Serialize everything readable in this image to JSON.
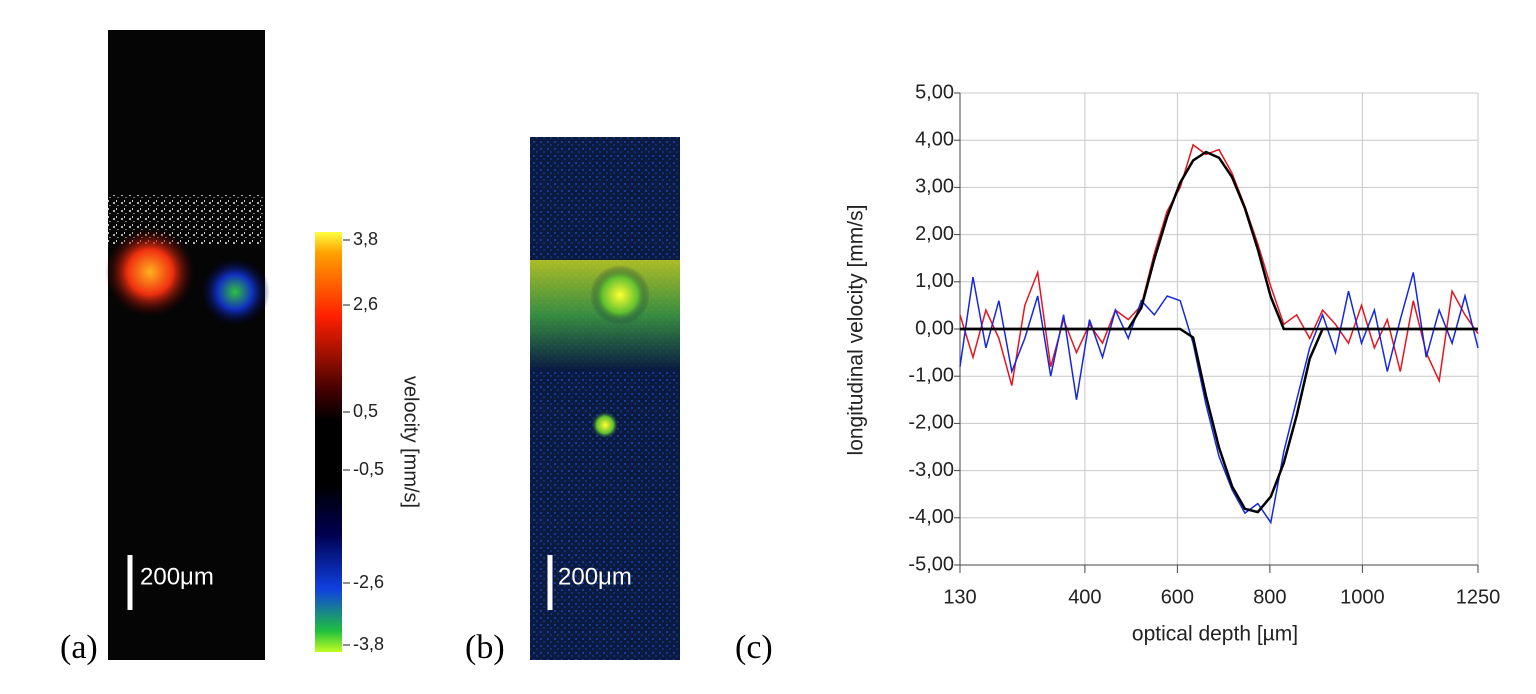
{
  "panel_a": {
    "label": "(a)",
    "scale_bar": "200μm"
  },
  "colorbar": {
    "title": "velocity [mm/s]",
    "labels": [
      "3,8",
      "2,6",
      "0,5",
      "-0,5",
      "-2,6",
      "-3,8"
    ]
  },
  "panel_b": {
    "label": "(b)",
    "scale_bar": "200μm"
  },
  "panel_c": {
    "label": "(c)"
  },
  "chart_data": {
    "type": "line",
    "xlabel": "optical depth [µm]",
    "ylabel": "longitudinal velocity [mm/s]",
    "x": [
      130,
      158,
      186,
      214,
      242,
      270,
      298,
      326,
      354,
      382,
      410,
      438,
      466,
      494,
      522,
      550,
      578,
      606,
      634,
      662,
      690,
      718,
      746,
      774,
      802,
      830,
      858,
      886,
      914,
      942,
      970,
      998,
      1026,
      1054,
      1082,
      1110,
      1138,
      1166,
      1194,
      1222,
      1250
    ],
    "series": [
      {
        "name": "red",
        "color": "#e8141c",
        "values": [
          0.3,
          -0.6,
          0.4,
          -0.2,
          -1.2,
          0.5,
          1.2,
          -0.8,
          0.2,
          -0.5,
          0.1,
          -0.3,
          0.4,
          0.2,
          0.5,
          1.6,
          2.5,
          3.0,
          3.9,
          3.7,
          3.8,
          3.3,
          2.6,
          1.8,
          0.9,
          0.1,
          0.3,
          -0.2,
          0.4,
          0.1,
          -0.3,
          0.5,
          -0.4,
          0.2,
          -0.9,
          0.6,
          -0.5,
          -1.1,
          0.8,
          0.3,
          -0.1
        ]
      },
      {
        "name": "blue",
        "color": "#1428e0",
        "values": [
          -0.8,
          1.1,
          -0.4,
          0.6,
          -0.9,
          -0.2,
          0.7,
          -1.0,
          0.3,
          -1.5,
          0.2,
          -0.6,
          0.4,
          -0.2,
          0.6,
          0.3,
          0.7,
          0.6,
          -0.3,
          -1.6,
          -2.7,
          -3.4,
          -3.9,
          -3.7,
          -4.1,
          -2.6,
          -1.5,
          -0.4,
          0.3,
          -0.5,
          0.8,
          -0.3,
          0.4,
          -0.9,
          0.2,
          1.2,
          -0.6,
          0.4,
          -0.3,
          0.7,
          -0.4
        ]
      },
      {
        "name": "red fit",
        "color": "#000000",
        "values": [
          0,
          0,
          0,
          0,
          0,
          0,
          0,
          0,
          0,
          0,
          0,
          0,
          0,
          0,
          0.45,
          1.48,
          2.38,
          3.1,
          3.57,
          3.75,
          3.63,
          3.22,
          2.56,
          1.69,
          0.68,
          0,
          0,
          0,
          0,
          0,
          0,
          0,
          0,
          0,
          0,
          0,
          0,
          0,
          0,
          0,
          0
        ]
      },
      {
        "name": "blue fit",
        "color": "#000000",
        "values": [
          0,
          0,
          0,
          0,
          0,
          0,
          0,
          0,
          0,
          0,
          0,
          0,
          0,
          0,
          0,
          0,
          0,
          0,
          -0.18,
          -1.42,
          -2.51,
          -3.33,
          -3.81,
          -3.88,
          -3.55,
          -2.84,
          -1.83,
          -0.63,
          0,
          0,
          0,
          0,
          0,
          0,
          0,
          0,
          0,
          0,
          0,
          0,
          0
        ]
      }
    ],
    "xlim": [
      130,
      1250
    ],
    "xticks": [
      130,
      400,
      600,
      800,
      1000,
      1250
    ],
    "ylim": [
      -5,
      5
    ],
    "yticks": [
      {
        "value": -5,
        "label": "-5,00"
      },
      {
        "value": -4,
        "label": "-4,00"
      },
      {
        "value": -3,
        "label": "-3,00"
      },
      {
        "value": -2,
        "label": "-2,00"
      },
      {
        "value": -1,
        "label": "-1,00"
      },
      {
        "value": 0,
        "label": "0,00"
      },
      {
        "value": 1,
        "label": "1,00"
      },
      {
        "value": 2,
        "label": "2,00"
      },
      {
        "value": 3,
        "label": "3,00"
      },
      {
        "value": 4,
        "label": "4,00"
      },
      {
        "value": 5,
        "label": "5,00"
      }
    ],
    "grid": true
  }
}
